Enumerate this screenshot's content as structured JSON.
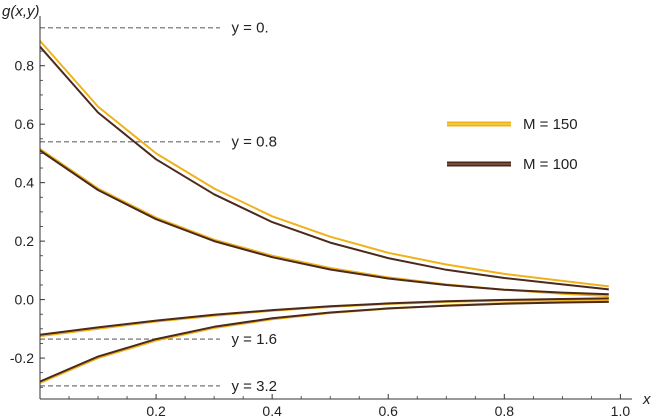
{
  "chart_data": {
    "type": "line",
    "xlabel": "x",
    "ylabel": "g(x,y)",
    "xlim": [
      0,
      1.02
    ],
    "ylim": [
      -0.34,
      0.97
    ],
    "x_ticks": [
      0.2,
      0.4,
      0.6,
      0.8,
      1.0
    ],
    "x_tick_labels": [
      "0.2",
      "0.4",
      "0.6",
      "0.8",
      "1.0"
    ],
    "y_ticks": [
      -0.2,
      0.0,
      0.2,
      0.4,
      0.6,
      0.8
    ],
    "y_tick_labels": [
      "-0.2",
      "0.0",
      "0.2",
      "0.4",
      "0.6",
      "0.8"
    ],
    "grid": false,
    "legend_position": "right",
    "colors": {
      "M150": "#f0b21c",
      "M100": "#4b2a1c",
      "reference": "#8c8c8c",
      "axis": "#333333"
    },
    "series": [
      {
        "name": "M = 150",
        "y": "0.",
        "x": [
          0,
          0.1,
          0.2,
          0.3,
          0.4,
          0.5,
          0.6,
          0.7,
          0.8,
          0.9,
          0.98
        ],
        "values": [
          0.885,
          0.66,
          0.5,
          0.38,
          0.285,
          0.215,
          0.16,
          0.12,
          0.088,
          0.064,
          0.045
        ]
      },
      {
        "name": "M = 100",
        "y": "0.",
        "x": [
          0,
          0.1,
          0.2,
          0.3,
          0.4,
          0.5,
          0.6,
          0.7,
          0.8,
          0.9,
          0.98
        ],
        "values": [
          0.865,
          0.64,
          0.48,
          0.36,
          0.265,
          0.195,
          0.142,
          0.102,
          0.074,
          0.052,
          0.035
        ]
      },
      {
        "name": "M = 150",
        "y": "0.8",
        "x": [
          0,
          0.1,
          0.2,
          0.3,
          0.4,
          0.5,
          0.6,
          0.7,
          0.8,
          0.9,
          0.98
        ],
        "values": [
          0.515,
          0.38,
          0.28,
          0.205,
          0.15,
          0.108,
          0.076,
          0.052,
          0.034,
          0.02,
          0.012
        ]
      },
      {
        "name": "M = 100",
        "y": "0.8",
        "x": [
          0,
          0.1,
          0.2,
          0.3,
          0.4,
          0.5,
          0.6,
          0.7,
          0.8,
          0.9,
          0.98
        ],
        "values": [
          0.51,
          0.375,
          0.275,
          0.2,
          0.145,
          0.103,
          0.072,
          0.05,
          0.034,
          0.024,
          0.018
        ]
      },
      {
        "name": "M = 150",
        "y": "1.6",
        "x": [
          0,
          0.1,
          0.2,
          0.3,
          0.4,
          0.5,
          0.6,
          0.7,
          0.8,
          0.9,
          0.98
        ],
        "values": [
          -0.125,
          -0.1,
          -0.075,
          -0.055,
          -0.038,
          -0.025,
          -0.015,
          -0.008,
          -0.003,
          0.0,
          0.003
        ]
      },
      {
        "name": "M = 100",
        "y": "1.6",
        "x": [
          0,
          0.1,
          0.2,
          0.3,
          0.4,
          0.5,
          0.6,
          0.7,
          0.8,
          0.9,
          0.98
        ],
        "values": [
          -0.12,
          -0.095,
          -0.072,
          -0.052,
          -0.036,
          -0.023,
          -0.013,
          -0.006,
          -0.001,
          0.002,
          0.004
        ]
      },
      {
        "name": "M = 150",
        "y": "3.2",
        "x": [
          0,
          0.1,
          0.2,
          0.3,
          0.4,
          0.5,
          0.6,
          0.7,
          0.8,
          0.9,
          0.98
        ],
        "values": [
          -0.285,
          -0.2,
          -0.14,
          -0.097,
          -0.067,
          -0.046,
          -0.031,
          -0.02,
          -0.012,
          -0.007,
          -0.004
        ]
      },
      {
        "name": "M = 100",
        "y": "3.2",
        "x": [
          0,
          0.1,
          0.2,
          0.3,
          0.4,
          0.5,
          0.6,
          0.7,
          0.8,
          0.9,
          0.98
        ],
        "values": [
          -0.28,
          -0.195,
          -0.135,
          -0.093,
          -0.064,
          -0.044,
          -0.03,
          -0.021,
          -0.014,
          -0.01,
          -0.008
        ]
      }
    ],
    "reference_lines": [
      {
        "label": "y = 0.",
        "value": 0.93
      },
      {
        "label": "y = 0.8",
        "value": 0.54
      },
      {
        "label": "y = 1.6",
        "value": -0.135
      },
      {
        "label": "y = 3.2",
        "value": -0.295
      }
    ],
    "legend": [
      {
        "label": "M = 150",
        "color": "#f0b21c"
      },
      {
        "label": "M = 100",
        "color": "#4b2a1c"
      }
    ]
  }
}
